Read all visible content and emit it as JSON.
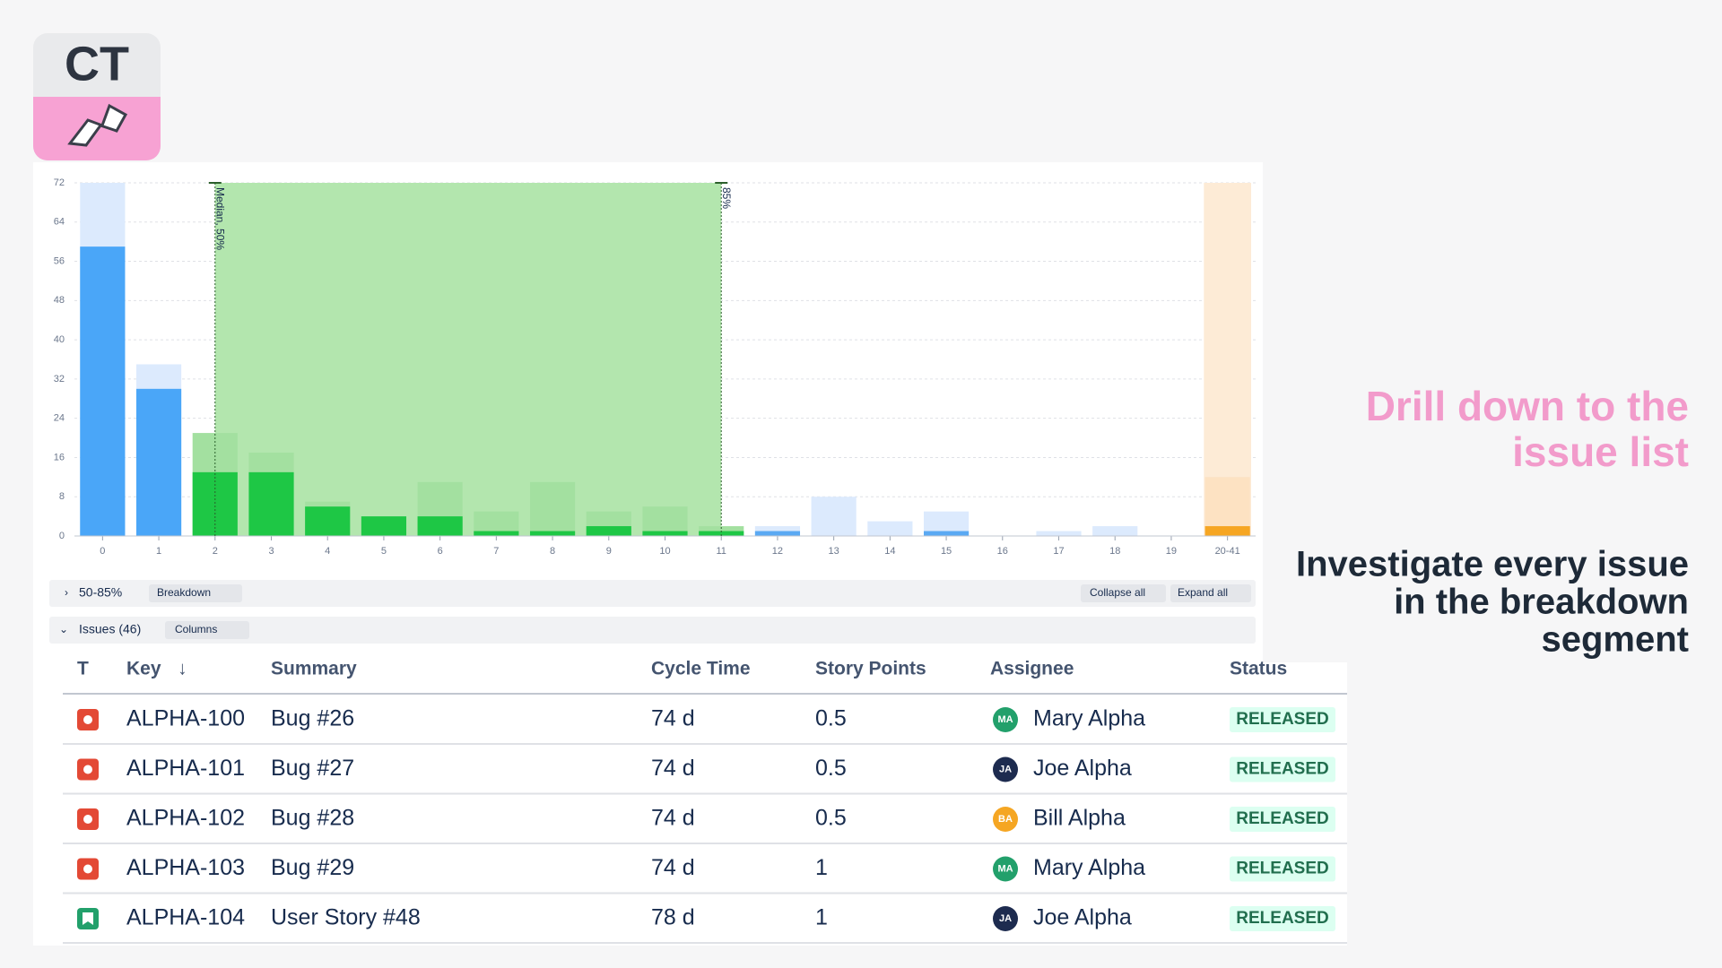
{
  "logo": "CT",
  "chart": {
    "type": "bar",
    "categories": [
      "0",
      "1",
      "2",
      "3",
      "4",
      "5",
      "6",
      "7",
      "8",
      "9",
      "10",
      "11",
      "12",
      "13",
      "14",
      "15",
      "16",
      "17",
      "18",
      "19",
      "20-41"
    ],
    "series": [
      {
        "values": [
          59,
          30,
          13,
          13,
          6,
          4,
          4,
          1,
          1,
          2,
          1,
          1,
          1,
          0,
          0,
          1,
          0,
          0,
          0,
          0,
          2
        ],
        "colors": [
          "#4aa6f8",
          "#4aa6f8",
          "#1ec745",
          "#1ec745",
          "#1ec745",
          "#1ec745",
          "#1ec745",
          "#1ec745",
          "#1ec745",
          "#1ec745",
          "#1ec745",
          "#1ec745",
          "#5aa9f3",
          "#5aa9f3",
          "#5aa9f3",
          "#5aa9f3",
          "#5aa9f3",
          "#5aa9f3",
          "#5aa9f3",
          "#5aa9f3",
          "#f6a623"
        ]
      },
      {
        "values": [
          72,
          35,
          21,
          17,
          7,
          4,
          11,
          5,
          11,
          5,
          6,
          2,
          2,
          8,
          3,
          5,
          0,
          1,
          2,
          0,
          12
        ],
        "colors": [
          "#dceafd",
          "#dceafd",
          "#a3e0a0",
          "#a3e0a0",
          "#a3e0a0",
          "#a3e0a0",
          "#a3e0a0",
          "#a3e0a0",
          "#a3e0a0",
          "#a3e0a0",
          "#a3e0a0",
          "#a3e0a0",
          "#dceafd",
          "#dceafd",
          "#dceafd",
          "#dceafd",
          "#dceafd",
          "#dceafd",
          "#dceafd",
          "#dceafd",
          "#fde2c2"
        ]
      }
    ],
    "ylim": [
      0,
      72
    ],
    "yticks": [
      0,
      8,
      16,
      24,
      32,
      40,
      48,
      56,
      64,
      72
    ],
    "grid": true,
    "markers": [
      {
        "label": "Median, 50%",
        "at": "2"
      },
      {
        "label": "85%",
        "at": "11"
      }
    ],
    "shade_color": "#b3e6ae",
    "highlight": {
      "at": "20-41",
      "color": "#fdebd6"
    }
  },
  "breakdown_bar": {
    "label": "50-85%",
    "button": "Breakdown",
    "collapse": "Collapse all",
    "expand": "Expand all"
  },
  "issues_bar": {
    "label": "Issues (46)",
    "button": "Columns"
  },
  "table": {
    "columns": [
      "T",
      "Key",
      "Summary",
      "Cycle Time",
      "Story Points",
      "Assignee",
      "Status"
    ],
    "rows": [
      {
        "type": "bug",
        "key": "ALPHA-100",
        "summary": "Bug #26",
        "cycle_time": "74 d",
        "story_points": 0.5,
        "initials": "MA",
        "avatar_color": "#22a06b",
        "assignee": "Mary Alpha",
        "status": "RELEASED"
      },
      {
        "type": "bug",
        "key": "ALPHA-101",
        "summary": "Bug #27",
        "cycle_time": "74 d",
        "story_points": 0.5,
        "initials": "JA",
        "avatar_color": "#1d2b4f",
        "assignee": "Joe Alpha",
        "status": "RELEASED"
      },
      {
        "type": "bug",
        "key": "ALPHA-102",
        "summary": "Bug #28",
        "cycle_time": "74 d",
        "story_points": 0.5,
        "initials": "BA",
        "avatar_color": "#f5a623",
        "assignee": "Bill Alpha",
        "status": "RELEASED"
      },
      {
        "type": "bug",
        "key": "ALPHA-103",
        "summary": "Bug #29",
        "cycle_time": "74 d",
        "story_points": 1,
        "initials": "MA",
        "avatar_color": "#22a06b",
        "assignee": "Mary Alpha",
        "status": "RELEASED"
      },
      {
        "type": "story",
        "key": "ALPHA-104",
        "summary": "User Story #48",
        "cycle_time": "78 d",
        "story_points": 1,
        "initials": "JA",
        "avatar_color": "#1d2b4f",
        "assignee": "Joe Alpha",
        "status": "RELEASED"
      }
    ]
  },
  "headline": [
    "Drill down to the",
    "issue list"
  ],
  "subline": [
    "Investigate every issue",
    "in the breakdown",
    "segment"
  ]
}
